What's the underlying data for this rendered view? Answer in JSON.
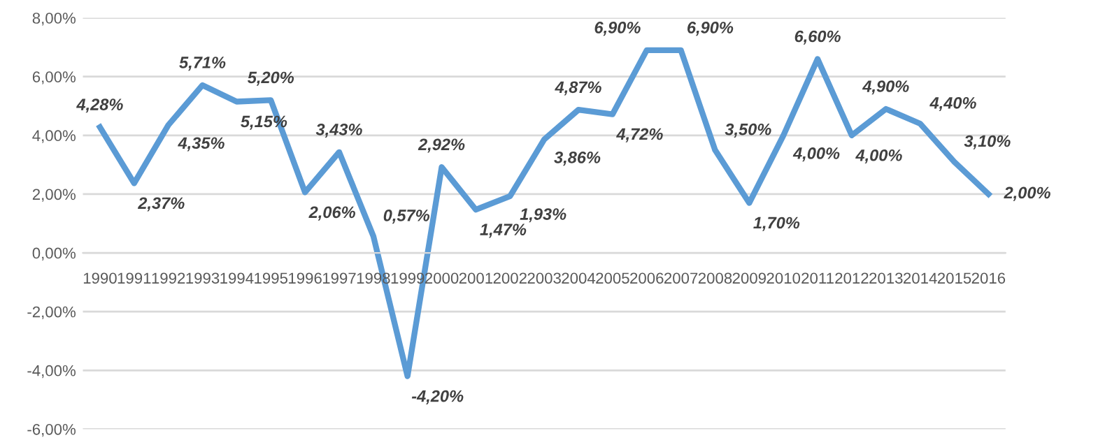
{
  "chart_data": {
    "type": "line",
    "categories": [
      "1990",
      "1991",
      "1992",
      "1993",
      "1994",
      "1995",
      "1996",
      "1997",
      "1998",
      "1999",
      "2000",
      "2001",
      "2002",
      "2003",
      "2004",
      "2005",
      "2006",
      "2007",
      "2008",
      "2009",
      "2010",
      "2011",
      "2012",
      "2013",
      "2014",
      "2015",
      "2016"
    ],
    "series": [
      {
        "color": "#5b9bd5",
        "values": [
          4.28,
          2.37,
          4.35,
          5.71,
          5.15,
          5.2,
          2.06,
          3.43,
          0.57,
          -4.2,
          2.92,
          1.47,
          1.93,
          3.86,
          4.87,
          4.72,
          6.9,
          6.9,
          3.5,
          1.7,
          4.0,
          6.6,
          4.0,
          4.9,
          4.4,
          3.1,
          2.0
        ],
        "value_labels": [
          "4,28%",
          "2,37%",
          "4,35%",
          "5,71%",
          "5,15%",
          "5,20%",
          "2,06%",
          "3,43%",
          "0,57%",
          "-4,20%",
          "2,92%",
          "1,47%",
          "1,93%",
          "3,86%",
          "4,87%",
          "4,72%",
          "6,90%",
          "6,90%",
          "3,50%",
          "1,70%",
          "4,00%",
          "6,60%",
          "4,00%",
          "4,90%",
          "4,40%",
          "3,10%",
          "2,00%"
        ]
      }
    ],
    "ylim": [
      -6,
      8
    ],
    "yticks": [
      {
        "value": -6,
        "label": "-6,00%"
      },
      {
        "value": -4,
        "label": "-4,00%"
      },
      {
        "value": -2,
        "label": "-2,00%"
      },
      {
        "value": 0,
        "label": "0,00%"
      },
      {
        "value": 2,
        "label": "2,00%"
      },
      {
        "value": 4,
        "label": "4,00%"
      },
      {
        "value": 6,
        "label": "6,00%"
      },
      {
        "value": 8,
        "label": "8,00%"
      }
    ],
    "grid": "y",
    "marker": "none",
    "line_style": "solid"
  }
}
